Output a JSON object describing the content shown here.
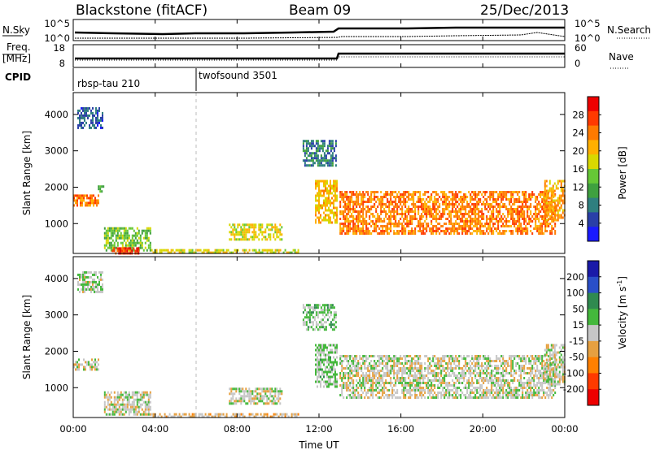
{
  "header": {
    "station": "Blackstone (fitACF)",
    "beam": "Beam 09",
    "date": "25/Dec/2013"
  },
  "top_panels": {
    "nsky_label": "N.Sky",
    "nsky_ticks": [
      "10^5",
      "10^0"
    ],
    "nsearch_label": "N.Search",
    "nsearch_ticks": [
      "10^5",
      "10^0"
    ],
    "freq_label_line1": "Freq.",
    "freq_label_line2": "[MHz]",
    "freq_ticks": [
      "18",
      "8"
    ],
    "nave_label": "Nave",
    "nave_ticks": [
      "60",
      "0"
    ],
    "cpid_label": "CPID",
    "cpid_segments": [
      {
        "name": "rbsp-tau 210",
        "start_hour": 0,
        "end_hour": 6
      },
      {
        "name": "twofsound 3501",
        "start_hour": 6,
        "end_hour": 24
      }
    ]
  },
  "x_axis": {
    "label": "Time UT",
    "ticks": [
      "00:00",
      "04:00",
      "08:00",
      "12:00",
      "16:00",
      "20:00",
      "00:00"
    ],
    "range_hours": [
      0,
      24
    ]
  },
  "chart_data": [
    {
      "type": "heatmap",
      "name": "power",
      "ylabel": "Slant Range [km]",
      "yticks": [
        "1000",
        "2000",
        "3000",
        "4000"
      ],
      "ylim": [
        180,
        4600
      ],
      "colorbar_label": "Power [dB]",
      "colorbar_ticks": [
        "4",
        "8",
        "12",
        "16",
        "20",
        "24",
        "28"
      ],
      "colorbar_range": [
        0,
        32
      ],
      "colors": [
        "#1a1aff",
        "#2a3fa8",
        "#2f7f7f",
        "#3fa03f",
        "#66c836",
        "#d8d800",
        "#ffb000",
        "#ff7a00",
        "#ff3a00",
        "#ee0000"
      ],
      "regions": [
        {
          "t0": 0.0,
          "t1": 1.2,
          "r0": 1500,
          "r1": 1800,
          "value": 24
        },
        {
          "t0": 1.2,
          "t1": 1.5,
          "r0": 1800,
          "r1": 2050,
          "value": 12
        },
        {
          "t0": 0.2,
          "t1": 1.4,
          "r0": 3600,
          "r1": 4200,
          "value": 6
        },
        {
          "t0": 1.5,
          "t1": 3.8,
          "r0": 250,
          "r1": 900,
          "value": 14
        },
        {
          "t0": 1.8,
          "t1": 3.2,
          "r0": 180,
          "r1": 350,
          "value": 28
        },
        {
          "t0": 3.8,
          "t1": 11.0,
          "r0": 180,
          "r1": 300,
          "value": 18
        },
        {
          "t0": 7.6,
          "t1": 10.2,
          "r0": 550,
          "r1": 1000,
          "value": 18
        },
        {
          "t0": 11.2,
          "t1": 12.8,
          "r0": 2600,
          "r1": 3300,
          "value": 8
        },
        {
          "t0": 11.8,
          "t1": 12.9,
          "r0": 1000,
          "r1": 2200,
          "value": 20
        },
        {
          "t0": 13.0,
          "t1": 23.5,
          "r0": 700,
          "r1": 1900,
          "value": 24
        },
        {
          "t0": 23.0,
          "t1": 24.0,
          "r0": 1100,
          "r1": 2200,
          "value": 22
        }
      ]
    },
    {
      "type": "heatmap",
      "name": "velocity",
      "ylabel": "Slant Range [km]",
      "yticks": [
        "1000",
        "2000",
        "3000",
        "4000"
      ],
      "ylim": [
        180,
        4600
      ],
      "colorbar_label": "Velocity [m s-1]",
      "colorbar_ticks": [
        "200",
        "100",
        "50",
        "15",
        "-15",
        "-50",
        "-100",
        "-200"
      ],
      "colorbar_range": [
        -250,
        250
      ],
      "colors": [
        "#1a1aa8",
        "#2a4fc8",
        "#2f8a4f",
        "#44b83c",
        "#c6c6c6",
        "#e6a040",
        "#ff8000",
        "#ff3a00",
        "#ee0000"
      ],
      "regions": [
        {
          "t0": 0.0,
          "t1": 1.2,
          "r0": 1500,
          "r1": 1800,
          "value": 0
        },
        {
          "t0": 0.2,
          "t1": 1.4,
          "r0": 3600,
          "r1": 4200,
          "value": 20
        },
        {
          "t0": 1.5,
          "t1": 3.8,
          "r0": 250,
          "r1": 900,
          "value": 0
        },
        {
          "t0": 3.8,
          "t1": 11.0,
          "r0": 180,
          "r1": 300,
          "value": -40
        },
        {
          "t0": 7.6,
          "t1": 10.2,
          "r0": 550,
          "r1": 1000,
          "value": 0
        },
        {
          "t0": 11.2,
          "t1": 12.8,
          "r0": 2600,
          "r1": 3300,
          "value": 40
        },
        {
          "t0": 11.8,
          "t1": 12.9,
          "r0": 1000,
          "r1": 2200,
          "value": 30
        },
        {
          "t0": 13.0,
          "t1": 23.5,
          "r0": 700,
          "r1": 1900,
          "value": 0
        },
        {
          "t0": 23.0,
          "t1": 24.0,
          "r0": 1100,
          "r1": 2200,
          "value": 0
        }
      ]
    }
  ]
}
